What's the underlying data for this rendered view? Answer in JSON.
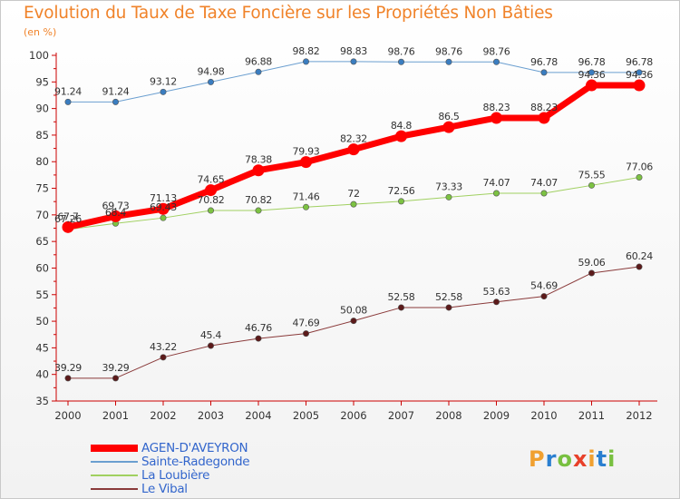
{
  "chart_data": {
    "type": "line",
    "title": "Evolution du Taux de Taxe Foncière sur les Propriétés Non Bâties",
    "ylabel": "(en %)",
    "x": [
      "2000",
      "2001",
      "2002",
      "2003",
      "2004",
      "2005",
      "2006",
      "2007",
      "2008",
      "2009",
      "2010",
      "2011",
      "2012"
    ],
    "ylim": [
      35,
      100
    ],
    "yticks": [
      "35",
      "40",
      "45",
      "50",
      "55",
      "60",
      "65",
      "70",
      "75",
      "80",
      "85",
      "90",
      "95",
      "100"
    ],
    "grid": false,
    "legend_position": "bottom-left",
    "series": [
      {
        "name": "Sainte-Radegonde",
        "color": "#6b9fd0",
        "marker": "#3a7dc0",
        "width": 1,
        "values": [
          91.24,
          91.24,
          93.12,
          94.98,
          96.88,
          98.82,
          98.83,
          98.76,
          98.76,
          98.76,
          96.78,
          96.78,
          96.78
        ],
        "labels": [
          "91.24",
          "91.24",
          "93.12",
          "94.98",
          "96.88",
          "98.82",
          "98.83",
          "98.76",
          "98.76",
          "98.76",
          "96.78",
          "96.78",
          "96.78"
        ]
      },
      {
        "name": "La Loubière",
        "color": "#a0d060",
        "marker": "#7cc242",
        "width": 1,
        "values": [
          67.26,
          68.4,
          69.43,
          70.82,
          70.82,
          71.46,
          72,
          72.56,
          73.33,
          74.07,
          74.07,
          75.55,
          77.06
        ],
        "labels": [
          "67.26",
          "68.4",
          "69.43",
          "70.82",
          "70.82",
          "71.46",
          "72",
          "72.56",
          "73.33",
          "74.07",
          "74.07",
          "75.55",
          "77.06"
        ]
      },
      {
        "name": "Le Vibal",
        "color": "#8a3a3a",
        "marker": "#5c1a1a",
        "width": 1,
        "values": [
          39.29,
          39.29,
          43.22,
          45.4,
          46.76,
          47.69,
          50.08,
          52.58,
          52.58,
          53.63,
          54.69,
          59.06,
          60.24
        ],
        "labels": [
          "39.29",
          "39.29",
          "43.22",
          "45.4",
          "46.76",
          "47.69",
          "50.08",
          "52.58",
          "52.58",
          "53.63",
          "54.69",
          "59.06",
          "60.24"
        ]
      },
      {
        "name": "AGEN-D'AVEYRON",
        "color": "#ff0000",
        "marker": "#ff0000",
        "width": 7,
        "values": [
          67.7,
          69.73,
          71.13,
          74.65,
          78.38,
          79.93,
          82.32,
          84.8,
          86.5,
          88.23,
          88.23,
          94.36,
          94.36
        ],
        "labels": [
          "67.7",
          "69.73",
          "71.13",
          "74.65",
          "78.38",
          "79.93",
          "82.32",
          "84.8",
          "86.5",
          "88.23",
          "88.23",
          "94.36",
          "94.36"
        ]
      }
    ]
  },
  "legend": {
    "items": [
      {
        "label": "AGEN-D'AVEYRON",
        "color": "#ff0000"
      },
      {
        "label": "Sainte-Radegonde",
        "color": "#6b9fd0"
      },
      {
        "label": "La Loubière",
        "color": "#a0d060"
      },
      {
        "label": "Le Vibal",
        "color": "#8a3a3a"
      }
    ]
  },
  "logo": {
    "letters": [
      "P",
      "r",
      "o",
      "x",
      "i",
      "t",
      "i"
    ],
    "colors": [
      "#f0a030",
      "#2a7fd0",
      "#78c040",
      "#e8402a",
      "#f0a030",
      "#2a7fd0",
      "#78c040"
    ]
  }
}
